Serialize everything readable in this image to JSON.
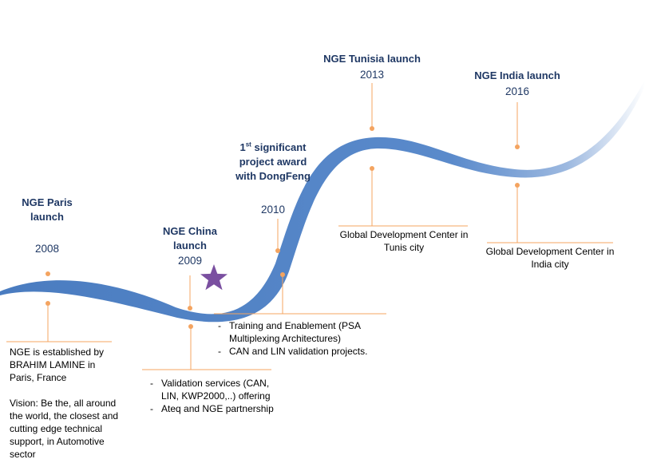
{
  "milestones": [
    {
      "title": "NGE Paris launch",
      "year": "2008",
      "description": [
        "NGE is established by BRAHIM LAMINE in Paris, France",
        "Vision: Be the, all around the world, the closest and cutting edge technical support, in Automotive sector"
      ]
    },
    {
      "title": "NGE China launch",
      "year": "2009",
      "description": [
        "Validation services (CAN, LIN, KWP2000,..) offering",
        "Ateq  and NGE partnership"
      ]
    },
    {
      "title_sup_prefix": "1",
      "title_sup": "st",
      "title": "significant project award with DongFeng",
      "year": "2010",
      "description": [
        "Training and Enablement (PSA Multiplexing Architectures)",
        "CAN and LIN validation projects."
      ]
    },
    {
      "title": "NGE Tunisia launch",
      "year": "2013",
      "description": [
        "Global Development Center in Tunis city"
      ]
    },
    {
      "title": "NGE India launch",
      "year": "2016",
      "description": [
        "Global Development Center in India city"
      ]
    }
  ],
  "colors": {
    "wave": "#4a7cc0",
    "connector": "#f4a460",
    "title": "#1f3864",
    "star": "#7a4fa0"
  },
  "icons": {
    "star": "star-icon"
  }
}
